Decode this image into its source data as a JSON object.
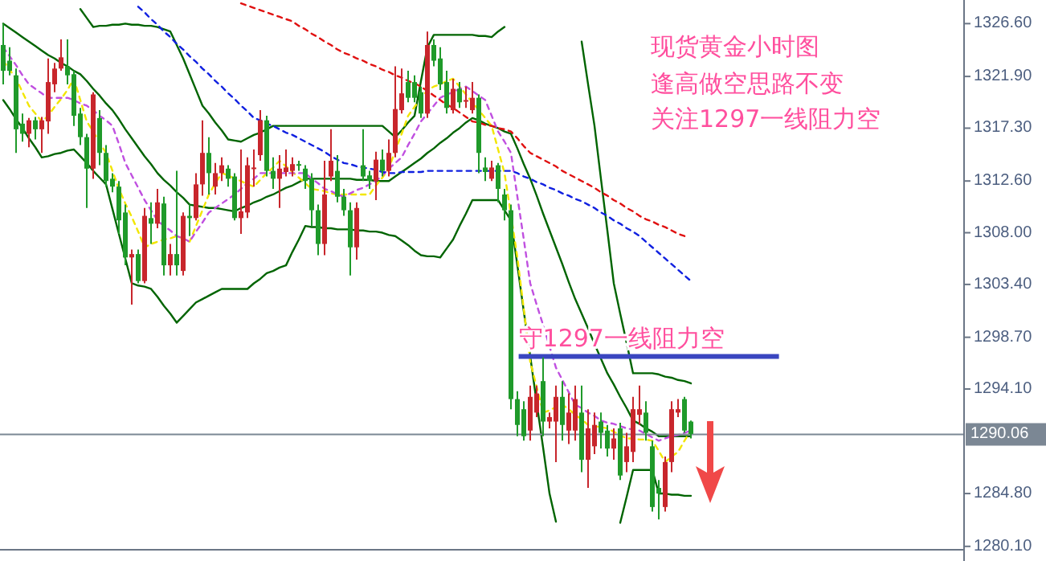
{
  "chart_data": {
    "type": "candlestick",
    "title": "现货黄金小时图",
    "annotations": [
      "逢高做空思路不变",
      "关注1297一线阻力空"
    ],
    "categories": [
      null,
      null,
      null,
      null,
      null,
      null,
      null,
      null,
      null,
      null,
      null,
      null,
      null,
      null,
      null,
      null,
      null,
      null,
      null,
      null,
      null,
      null,
      null,
      null,
      null,
      null,
      null,
      null,
      null,
      null,
      null,
      null,
      null,
      null,
      null,
      null,
      null,
      null,
      null,
      null,
      null,
      null,
      null,
      null,
      null,
      null,
      null,
      null,
      null,
      null,
      null,
      null,
      null,
      null,
      null,
      null,
      null,
      null,
      null,
      null,
      null,
      null,
      null,
      null,
      null,
      null,
      null,
      null,
      null,
      null,
      null,
      null,
      null,
      null,
      null,
      null,
      null,
      null,
      null,
      null,
      null,
      null,
      null,
      null,
      null,
      null,
      null,
      null,
      null,
      null,
      null,
      null,
      null,
      null,
      null,
      null,
      null,
      null,
      null,
      null,
      null,
      null,
      null,
      null,
      null,
      null,
      null,
      null,
      null,
      null,
      null,
      null,
      null,
      null,
      null,
      null,
      null,
      null,
      null,
      null,
      null,
      null,
      null,
      null,
      null,
      null,
      null,
      null,
      null,
      null,
      null,
      null,
      null,
      null,
      null,
      null,
      null,
      null,
      null,
      null,
      null,
      null,
      null,
      null,
      null,
      null,
      null,
      null,
      null,
      null
    ],
    "ohlc": [
      [
        1324.7,
        1326.6,
        1321.2,
        1322.4
      ],
      [
        1323.3,
        1324.5,
        1322.0,
        1322.4
      ],
      [
        1322.0,
        1322.6,
        1315.1,
        1317.2
      ],
      [
        1317.7,
        1318.6,
        1316.1,
        1316.8
      ],
      [
        1316.8,
        1318.2,
        1315.6,
        1318.0
      ],
      [
        1318.0,
        1318.3,
        1316.3,
        1317.2
      ],
      [
        1317.2,
        1318.3,
        1315.1,
        1318.0
      ],
      [
        1317.9,
        1323.5,
        1316.8,
        1321.4
      ],
      [
        1321.2,
        1323.1,
        1320.5,
        1322.6
      ],
      [
        1322.6,
        1325.2,
        1322.4,
        1323.6
      ],
      [
        1322.8,
        1325.2,
        1321.2,
        1322.0
      ],
      [
        1322.1,
        1322.4,
        1317.5,
        1318.4
      ],
      [
        1318.6,
        1319.1,
        1315.8,
        1316.5
      ],
      [
        1316.5,
        1316.8,
        1310.2,
        1313.7
      ],
      [
        1313.7,
        1320.5,
        1312.8,
        1320.3
      ],
      [
        1318.2,
        1318.9,
        1314.0,
        1315.1
      ],
      [
        1315.1,
        1315.8,
        1312.1,
        1312.6
      ],
      [
        1312.8,
        1313.3,
        1311.6,
        1312.1
      ],
      [
        1312.1,
        1312.6,
        1307.9,
        1309.1
      ],
      [
        1309.8,
        1310.5,
        1305.1,
        1305.8
      ],
      [
        1305.8,
        1306.5,
        1301.6,
        1306.1
      ],
      [
        1306.1,
        1306.5,
        1303.5,
        1303.7
      ],
      [
        1303.7,
        1310.2,
        1303.5,
        1309.5
      ],
      [
        1309.3,
        1310.7,
        1307.0,
        1308.8
      ],
      [
        1308.8,
        1311.9,
        1308.4,
        1310.7
      ],
      [
        1310.6,
        1311.2,
        1304.2,
        1305.1
      ],
      [
        1305.1,
        1307.0,
        1304.2,
        1306.1
      ],
      [
        1306.1,
        1313.5,
        1304.2,
        1305.1
      ],
      [
        1304.6,
        1309.8,
        1304.2,
        1309.5
      ],
      [
        1309.5,
        1310.5,
        1307.7,
        1309.3
      ],
      [
        1309.3,
        1313.3,
        1309.1,
        1312.3
      ],
      [
        1312.3,
        1318.0,
        1311.3,
        1315.1
      ],
      [
        1315.1,
        1316.5,
        1311.4,
        1313.3
      ],
      [
        1312.1,
        1314.2,
        1311.4,
        1313.3
      ],
      [
        1313.3,
        1314.7,
        1312.6,
        1314.0
      ],
      [
        1313.7,
        1314.0,
        1312.1,
        1312.8
      ],
      [
        1313.0,
        1313.3,
        1309.1,
        1309.3
      ],
      [
        1309.3,
        1315.4,
        1307.9,
        1309.9
      ],
      [
        1309.8,
        1314.7,
        1309.3,
        1314.0
      ],
      [
        1313.7,
        1315.4,
        1312.1,
        1313.8
      ],
      [
        1314.9,
        1318.9,
        1314.4,
        1318.0
      ],
      [
        1318.0,
        1318.4,
        1313.0,
        1313.5
      ],
      [
        1313.5,
        1314.7,
        1311.9,
        1312.8
      ],
      [
        1312.8,
        1314.9,
        1310.2,
        1313.7
      ],
      [
        1313.4,
        1315.4,
        1313.0,
        1313.8
      ],
      [
        1313.5,
        1314.7,
        1313.0,
        1314.1
      ],
      [
        1314.1,
        1314.4,
        1313.5,
        1314.0
      ],
      [
        1313.7,
        1314.0,
        1311.9,
        1312.6
      ],
      [
        1312.8,
        1313.3,
        1308.6,
        1310.0
      ],
      [
        1310.0,
        1310.5,
        1306.0,
        1307.0
      ],
      [
        1307.0,
        1314.4,
        1306.0,
        1311.4
      ],
      [
        1313.0,
        1317.2,
        1312.6,
        1314.4
      ],
      [
        1313.5,
        1314.9,
        1310.7,
        1311.2
      ],
      [
        1311.2,
        1311.9,
        1309.5,
        1310.0
      ],
      [
        1310.0,
        1310.7,
        1304.2,
        1306.7
      ],
      [
        1306.7,
        1310.7,
        1305.6,
        1310.2
      ],
      [
        1314.0,
        1317.2,
        1312.6,
        1313.0
      ],
      [
        1313.1,
        1313.5,
        1311.9,
        1312.6
      ],
      [
        1312.6,
        1315.2,
        1310.9,
        1314.5
      ],
      [
        1314.5,
        1315.4,
        1313.0,
        1313.5
      ],
      [
        1313.5,
        1316.3,
        1313.0,
        1315.1
      ],
      [
        1315.1,
        1322.8,
        1314.7,
        1319.0
      ],
      [
        1318.9,
        1322.6,
        1318.6,
        1320.4
      ],
      [
        1321.4,
        1322.4,
        1319.6,
        1320.0
      ],
      [
        1321.4,
        1322.0,
        1319.6,
        1320.0
      ],
      [
        1320.5,
        1321.0,
        1318.2,
        1318.6
      ],
      [
        1318.6,
        1325.9,
        1318.2,
        1324.7
      ],
      [
        1324.7,
        1325.2,
        1322.8,
        1323.3
      ],
      [
        1323.5,
        1324.5,
        1320.7,
        1321.2
      ],
      [
        1321.4,
        1322.4,
        1318.6,
        1319.1
      ],
      [
        1318.9,
        1321.7,
        1318.6,
        1320.8
      ],
      [
        1320.8,
        1321.4,
        1319.1,
        1319.6
      ],
      [
        1319.7,
        1321.0,
        1319.1,
        1319.8
      ],
      [
        1318.9,
        1321.4,
        1318.6,
        1320.0
      ],
      [
        1320.0,
        1320.3,
        1313.3,
        1315.1
      ],
      [
        1313.8,
        1314.7,
        1312.6,
        1313.4
      ],
      [
        1312.8,
        1314.4,
        1312.6,
        1313.8
      ],
      [
        1314.0,
        1314.2,
        1310.7,
        1311.9
      ],
      [
        1311.4,
        1311.9,
        1309.1,
        1310.0
      ],
      [
        1310.0,
        1310.5,
        1292.3,
        1293.2
      ],
      [
        1293.2,
        1293.9,
        1289.9,
        1290.9
      ],
      [
        1292.3,
        1293.0,
        1289.5,
        1289.9
      ],
      [
        1290.4,
        1294.4,
        1289.5,
        1293.4
      ],
      [
        1292.0,
        1294.4,
        1291.6,
        1293.7
      ],
      [
        1294.8,
        1296.9,
        1289.9,
        1291.2
      ],
      [
        1291.2,
        1292.0,
        1290.6,
        1291.6
      ],
      [
        1291.2,
        1294.4,
        1287.6,
        1293.4
      ],
      [
        1293.4,
        1294.8,
        1289.5,
        1290.9
      ],
      [
        1290.4,
        1293.7,
        1289.2,
        1292.0
      ],
      [
        1290.4,
        1294.4,
        1289.5,
        1293.2
      ],
      [
        1292.0,
        1294.4,
        1286.7,
        1287.8
      ],
      [
        1287.8,
        1292.3,
        1285.3,
        1290.6
      ],
      [
        1289.0,
        1292.0,
        1288.3,
        1290.9
      ],
      [
        1291.2,
        1292.0,
        1288.8,
        1290.2
      ],
      [
        1290.4,
        1290.9,
        1288.1,
        1288.8
      ],
      [
        1288.8,
        1290.6,
        1287.8,
        1289.7
      ],
      [
        1290.6,
        1291.1,
        1286.0,
        1286.4
      ],
      [
        1287.6,
        1290.2,
        1286.7,
        1289.0
      ],
      [
        1288.5,
        1293.4,
        1287.6,
        1292.3
      ],
      [
        1291.8,
        1294.4,
        1290.9,
        1292.3
      ],
      [
        1292.0,
        1293.0,
        1289.5,
        1290.2
      ],
      [
        1289.0,
        1289.5,
        1283.2,
        1283.6
      ],
      [
        1285.3,
        1286.0,
        1282.5,
        1284.8
      ],
      [
        1283.6,
        1288.1,
        1283.2,
        1287.6
      ],
      [
        1287.6,
        1293.0,
        1286.7,
        1292.3
      ],
      [
        1292.0,
        1293.2,
        1291.6,
        1292.3
      ],
      [
        1293.2,
        1293.4,
        1290.2,
        1290.4
      ],
      [
        1291.2,
        1291.3,
        1289.7,
        1290.1
      ],
      null,
      null,
      null,
      null,
      null,
      null,
      null,
      null,
      null,
      null,
      null,
      null,
      null,
      null,
      null,
      null,
      null,
      null,
      null,
      null,
      null,
      null,
      null,
      null,
      null,
      null,
      null,
      null,
      null,
      null,
      null,
      null,
      null,
      null,
      null,
      null,
      null,
      null,
      null,
      null,
      null,
      null
    ],
    "colors": [
      "#1f9a2a",
      "#1f9a2a",
      "#1f9a2a",
      "#1f9a2a",
      "#c8262c",
      "#1f9a2a",
      "#c8262c",
      "#c8262c",
      "#c8262c",
      "#c8262c",
      "#1f9a2a",
      "#1f9a2a",
      "#1f9a2a",
      "#1f9a2a",
      "#c8262c",
      "#1f9a2a",
      "#1f9a2a",
      "#1f9a2a",
      "#1f9a2a",
      "#1f9a2a",
      "#c8262c",
      "#1f9a2a",
      "#c8262c",
      "#1f9a2a",
      "#c8262c",
      "#1f9a2a",
      "#c8262c",
      "#1f9a2a",
      "#c8262c",
      "#1f9a2a",
      "#c8262c",
      "#c8262c",
      "#1f9a2a",
      "#c8262c",
      "#c8262c",
      "#1f9a2a",
      "#1f9a2a",
      "#c8262c",
      "#c8262c",
      "#c8262c",
      "#c8262c",
      "#1f9a2a",
      "#1f9a2a",
      "#c8262c",
      "#c8262c",
      "#c8262c",
      "#1f9a2a",
      "#1f9a2a",
      "#1f9a2a",
      "#1f9a2a",
      "#c8262c",
      "#c8262c",
      "#1f9a2a",
      "#1f9a2a",
      "#1f9a2a",
      "#c8262c",
      "#1f9a2a",
      "#1f9a2a",
      "#c8262c",
      "#1f9a2a",
      "#c8262c",
      "#c8262c",
      "#c8262c",
      "#1f9a2a",
      "#1f9a2a",
      "#1f9a2a",
      "#c8262c",
      "#1f9a2a",
      "#1f9a2a",
      "#1f9a2a",
      "#c8262c",
      "#1f9a2a",
      "#c8262c",
      "#c8262c",
      "#1f9a2a",
      "#1f9a2a",
      "#c8262c",
      "#1f9a2a",
      "#1f9a2a",
      "#1f9a2a",
      "#1f9a2a",
      "#1f9a2a",
      "#c8262c",
      "#c8262c",
      "#1f9a2a",
      "#c8262c",
      "#c8262c",
      "#1f9a2a",
      "#c8262c",
      "#c8262c",
      "#1f9a2a",
      "#c8262c",
      "#c8262c",
      "#1f9a2a",
      "#1f9a2a",
      "#c8262c",
      "#1f9a2a",
      "#c8262c",
      "#c8262c",
      "#c8262c",
      "#1f9a2a",
      "#1f9a2a",
      "#1f9a2a",
      "#c8262c",
      "#c8262c",
      "#c8262c",
      "#1f9a2a",
      "#1f9a2a",
      null,
      null,
      null,
      null,
      null,
      null,
      null,
      null,
      null,
      null,
      null,
      null,
      null,
      null,
      null,
      null,
      null,
      null,
      null,
      null,
      null,
      null,
      null,
      null,
      null,
      null,
      null,
      null,
      null,
      null,
      null,
      null,
      null,
      null,
      null,
      null,
      null,
      null,
      null,
      null,
      null,
      null
    ],
    "series": [
      {
        "type": "line",
        "color": "#006400",
        "line_style": "solid",
        "values": [
          null,
          null,
          null,
          null,
          null,
          null,
          null,
          null,
          null,
          null,
          null,
          null,
          1327.9,
          1327.1,
          1326.3,
          1326.4,
          1326.4,
          1326.5,
          1326.5,
          1326.6,
          1326.5,
          1326.5,
          1326.4,
          1326.4,
          1326.3,
          1326.1,
          1325.9,
          1324.7,
          1323.5,
          1322.1,
          1320.7,
          1319.3,
          1318.6,
          1317.8,
          1317.1,
          1316.3,
          1316.2,
          1316.1,
          1316.4,
          1316.7,
          1316.9,
          1317.2,
          1317.5,
          1317.5,
          1317.5,
          1317.5,
          1317.5,
          1317.5,
          1317.5,
          1317.5,
          1317.5,
          1317.5,
          1317.5,
          1317.5,
          1317.5,
          1317.5,
          1317.5,
          1317.5,
          1317.5,
          1317.5,
          1317.0,
          1316.5,
          1317.1,
          1317.8,
          1318.4,
          1321.5,
          1324.5,
          1325.6,
          1325.6,
          1325.6,
          1325.6,
          1325.6,
          1325.6,
          1325.6,
          1325.5,
          1325.5,
          1325.4,
          1325.9,
          1326.3,
          null,
          null,
          null,
          null,
          null,
          null,
          null,
          null,
          null,
          null,
          null,
          1325.0,
          1321.2,
          1317.5,
          1312.8,
          1308.2,
          1303.5,
          1300.8,
          1298.2,
          1295.5,
          1295.5,
          1295.5,
          1295.5,
          1295.4,
          1295.2,
          1295.1,
          1294.9,
          1294.8,
          1294.6,
          null,
          null,
          null,
          null,
          null,
          null,
          null,
          null,
          null,
          null,
          null,
          null,
          null,
          null,
          null,
          null,
          null,
          null,
          null,
          null,
          null,
          null,
          null,
          null,
          null,
          null,
          null,
          null,
          null,
          null,
          null,
          null,
          null,
          null,
          null,
          null,
          null,
          null,
          null,
          null,
          null,
          null
        ]
      },
      {
        "type": "line",
        "color": "#006400",
        "line_style": "solid",
        "values": [
          1326.6,
          1326.2,
          1325.8,
          1325.4,
          1325.0,
          1324.6,
          1324.2,
          1323.8,
          1323.5,
          1323.1,
          1322.8,
          1322.4,
          1322.1,
          1321.5,
          1320.8,
          1320.2,
          1319.5,
          1318.9,
          1318.1,
          1317.2,
          1316.4,
          1315.6,
          1314.8,
          1314.1,
          1313.3,
          1312.7,
          1312.2,
          1311.6,
          1311.1,
          1310.5,
          1310.4,
          1310.3,
          1310.2,
          1310.2,
          1310.1,
          1310.0,
          1309.9,
          1310.2,
          1310.4,
          1310.7,
          1310.9,
          1311.2,
          1311.4,
          1311.7,
          1312.0,
          1312.2,
          1312.5,
          1312.8,
          1312.8,
          1312.8,
          1312.8,
          1312.8,
          1312.8,
          1312.8,
          1312.8,
          1312.7,
          1312.7,
          1312.7,
          1312.6,
          1312.6,
          1312.6,
          1313.0,
          1313.4,
          1313.8,
          1314.2,
          1314.6,
          1315.1,
          1315.5,
          1316.0,
          1316.4,
          1316.9,
          1317.3,
          1317.8,
          1318.2,
          1318.0,
          1317.7,
          1317.5,
          1317.3,
          1317.0,
          1316.8,
          1315.5,
          1314.1,
          1312.8,
          1311.3,
          1309.7,
          1308.2,
          1306.7,
          1305.2,
          1303.6,
          1302.1,
          1300.8,
          1299.5,
          1298.1,
          1296.8,
          1295.5,
          1294.5,
          1293.4,
          1292.4,
          1291.3,
          1291.0,
          1290.6,
          1290.3,
          1289.9,
          1289.9,
          1289.9,
          1289.9,
          1289.9,
          1289.9,
          null,
          null,
          null,
          null,
          null,
          null,
          null,
          null,
          null,
          null,
          null,
          null,
          null,
          null,
          null,
          null,
          null,
          null,
          null,
          null,
          null,
          null,
          null,
          null,
          null,
          null,
          null,
          null,
          null,
          null,
          null,
          null,
          null,
          null,
          null,
          null,
          null,
          null,
          null,
          null,
          null,
          null
        ]
      },
      {
        "type": "line",
        "color": "#006400",
        "line_style": "solid",
        "values": [
          1319.8,
          1319.0,
          1318.1,
          1317.3,
          1316.4,
          1315.6,
          1314.7,
          1314.8,
          1315.0,
          1315.1,
          1315.3,
          1315.4,
          1314.8,
          1314.2,
          1313.5,
          1312.9,
          1312.3,
          1310.1,
          1307.9,
          1305.7,
          1303.5,
          1303.3,
          1303.2,
          1303.0,
          1302.3,
          1301.5,
          1300.8,
          1300.0,
          1300.6,
          1301.2,
          1301.8,
          1302.1,
          1302.4,
          1302.7,
          1303.0,
          1303.0,
          1303.0,
          1303.0,
          1303.0,
          1303.5,
          1303.9,
          1304.4,
          1304.6,
          1304.9,
          1305.1,
          1306.3,
          1307.4,
          1308.6,
          1308.5,
          1308.5,
          1308.4,
          1308.4,
          1308.3,
          1308.3,
          1308.3,
          1308.2,
          1308.2,
          1308.1,
          1308.1,
          1308.0,
          1307.8,
          1307.7,
          1307.3,
          1306.9,
          1306.4,
          1306.0,
          1305.9,
          1305.9,
          1305.8,
          1306.6,
          1307.4,
          1308.6,
          1309.7,
          1310.9,
          1310.9,
          1310.9,
          1310.9,
          1310.9,
          1310.0,
          1309.1,
          1305.1,
          1301.0,
          1297.0,
          1292.9,
          1288.9,
          1284.8,
          1282.3,
          null,
          null,
          null,
          null,
          null,
          null,
          null,
          null,
          null,
          1282.2,
          1284.5,
          1286.9,
          1286.9,
          1286.9,
          1286.9,
          1284.8,
          1284.8,
          1284.7,
          1284.7,
          1284.6,
          1284.6,
          null,
          null,
          null,
          null,
          null,
          null,
          null,
          null,
          null,
          null,
          null,
          null,
          null,
          null,
          null,
          null,
          null,
          null,
          null,
          null,
          null,
          null,
          null,
          null,
          null,
          null,
          null,
          null,
          null,
          null,
          null,
          null,
          null,
          null,
          null,
          null,
          null,
          null,
          null,
          null,
          null,
          null
        ]
      },
      {
        "type": "line",
        "color": "#f2e600",
        "line_style": "dashed",
        "values": [
          1323.3,
          1322.5,
          1321.7,
          1320.5,
          1319.3,
          1318.6,
          1317.9,
          1318.4,
          1319.2,
          1319.9,
          1320.7,
          1321.7,
          1319.8,
          1317.9,
          1317.0,
          1316.0,
          1315.1,
          1313.5,
          1311.9,
          1310.6,
          1309.4,
          1308.1,
          1306.7,
          1307.0,
          1307.2,
          1307.4,
          1307.5,
          1307.7,
          1307.5,
          1307.2,
          1308.6,
          1310.0,
          1311.4,
          1312.4,
          1313.3,
          1313.1,
          1312.8,
          1312.6,
          1312.3,
          1312.1,
          1312.7,
          1313.3,
          1313.8,
          1314.4,
          1313.9,
          1313.4,
          1312.9,
          1312.4,
          1311.9,
          1311.8,
          1311.7,
          1311.5,
          1311.4,
          1311.4,
          1311.4,
          1311.4,
          1311.4,
          1311.4,
          1312.2,
          1312.9,
          1313.7,
          1315.3,
          1316.8,
          1318.4,
          1319.2,
          1319.9,
          1320.7,
          1321.0,
          1321.2,
          1321.5,
          1321.7,
          1321.0,
          1320.3,
          1319.6,
          1318.9,
          1318.2,
          1317.5,
          1315.4,
          1313.3,
          1309.6,
          1305.8,
          1301.2,
          1296.5,
          1294.3,
          1292.0,
          1292.2,
          1292.5,
          1292.7,
          1292.3,
          1291.8,
          1291.4,
          1290.9,
          1290.8,
          1290.7,
          1290.6,
          1290.3,
          1290.0,
          1289.7,
          1289.7,
          1289.6,
          1289.6,
          1289.5,
          1288.6,
          1287.6,
          1288.1,
          1288.5,
          1289.5,
          1290.4,
          null,
          null,
          null,
          null,
          null,
          null,
          null,
          null,
          null,
          null,
          null,
          null,
          null,
          null,
          null,
          null,
          null,
          null,
          null,
          null,
          null,
          null,
          null,
          null,
          null,
          null,
          null,
          null,
          null,
          null,
          null,
          null,
          null,
          null,
          null,
          null,
          null,
          null,
          null,
          null,
          null,
          null
        ]
      },
      {
        "type": "line",
        "color": "#c050e0",
        "line_style": "dashed",
        "values": [
          1324.5,
          1323.7,
          1322.9,
          1322.0,
          1321.2,
          1320.8,
          1320.4,
          1320.0,
          1320.0,
          1320.0,
          1320.0,
          1319.8,
          1319.5,
          1319.3,
          1318.9,
          1318.4,
          1318.0,
          1317.5,
          1315.9,
          1314.2,
          1313.1,
          1312.0,
          1310.9,
          1310.0,
          1309.1,
          1308.6,
          1308.2,
          1307.7,
          1307.5,
          1307.2,
          1308.1,
          1308.9,
          1309.8,
          1310.2,
          1310.6,
          1311.0,
          1311.4,
          1311.9,
          1312.4,
          1312.8,
          1313.3,
          1313.3,
          1313.3,
          1313.3,
          1313.3,
          1313.3,
          1313.3,
          1313.3,
          1312.8,
          1312.4,
          1311.9,
          1311.7,
          1311.4,
          1311.2,
          1311.5,
          1311.8,
          1312.0,
          1312.3,
          1312.6,
          1313.1,
          1313.7,
          1314.2,
          1314.7,
          1315.8,
          1316.8,
          1317.9,
          1318.6,
          1319.3,
          1320.0,
          1320.3,
          1320.5,
          1320.8,
          1321.0,
          1320.6,
          1320.2,
          1319.8,
          1318.4,
          1317.0,
          1316.1,
          1315.1,
          1311.2,
          1307.4,
          1303.5,
          1301.6,
          1299.8,
          1297.9,
          1296.0,
          1294.9,
          1293.8,
          1292.7,
          1292.4,
          1292.0,
          1291.7,
          1291.3,
          1291.1,
          1291.0,
          1290.8,
          1290.6,
          1290.5,
          1290.4,
          1290.1,
          1289.8,
          1289.5,
          1289.7,
          1289.9,
          1290.0,
          1290.2,
          1290.4,
          null,
          null,
          null,
          null,
          null,
          null,
          null,
          null,
          null,
          null,
          null,
          null,
          null,
          null,
          null,
          null,
          null,
          null,
          null,
          null,
          null,
          null,
          null,
          null,
          null,
          null,
          null,
          null,
          null,
          null,
          null,
          null,
          null,
          null,
          null,
          null,
          null,
          null,
          null,
          null,
          null,
          null
        ]
      },
      {
        "type": "line",
        "color": "#1020e0",
        "line_style": "dashed",
        "values": [
          null,
          null,
          null,
          null,
          null,
          null,
          null,
          null,
          null,
          null,
          null,
          null,
          null,
          null,
          null,
          null,
          null,
          null,
          null,
          null,
          null,
          1328.1,
          1327.6,
          1327.0,
          1326.5,
          1325.9,
          1325.4,
          1324.8,
          1324.3,
          1323.7,
          1323.2,
          1322.6,
          1322.1,
          1321.5,
          1321.0,
          1320.4,
          1319.9,
          1319.3,
          1318.8,
          1318.2,
          1318.0,
          1317.7,
          1317.5,
          1317.2,
          1316.9,
          1316.7,
          1316.4,
          1316.1,
          1315.8,
          1315.5,
          1315.2,
          1314.8,
          1314.5,
          1314.2,
          1314.1,
          1313.9,
          1313.8,
          1313.7,
          1313.6,
          1313.4,
          1313.3,
          1313.3,
          1313.4,
          1313.4,
          1313.4,
          1313.4,
          1313.5,
          1313.5,
          1313.5,
          1313.5,
          1313.5,
          1313.5,
          1313.5,
          1313.5,
          1313.5,
          1313.5,
          1313.5,
          1313.5,
          1313.5,
          1313.5,
          1313.3,
          1313.0,
          1312.8,
          1312.5,
          1312.3,
          1312.0,
          1311.8,
          1311.5,
          1311.3,
          1311.0,
          1310.8,
          1310.5,
          1310.2,
          1309.8,
          1309.5,
          1309.1,
          1308.8,
          1308.4,
          1308.1,
          1307.7,
          1307.2,
          1306.7,
          1306.2,
          1305.7,
          1305.2,
          1304.7,
          1304.2,
          1303.7,
          null,
          null,
          null,
          null,
          null,
          null,
          null,
          null,
          null,
          null,
          null,
          null,
          null,
          null,
          null,
          null,
          null,
          null,
          null,
          null,
          null,
          null,
          null,
          null,
          null,
          null,
          null,
          null,
          null,
          null,
          null,
          null,
          null,
          null,
          null,
          null,
          null,
          null,
          null,
          null,
          null,
          null
        ]
      },
      {
        "type": "line",
        "color": "#e01010",
        "line_style": "dashed",
        "values": [
          null,
          null,
          null,
          null,
          null,
          null,
          null,
          null,
          null,
          null,
          null,
          null,
          null,
          null,
          null,
          null,
          null,
          null,
          null,
          null,
          null,
          null,
          null,
          null,
          null,
          null,
          null,
          null,
          null,
          null,
          null,
          null,
          null,
          null,
          null,
          null,
          null,
          1328.4,
          1328.2,
          1328.0,
          1327.8,
          1327.6,
          1327.4,
          1327.2,
          1327.0,
          1326.8,
          1326.4,
          1326.1,
          1325.7,
          1325.4,
          1325.0,
          1324.7,
          1324.3,
          1324.0,
          1323.8,
          1323.5,
          1323.3,
          1323.0,
          1322.8,
          1322.5,
          1322.3,
          1322.0,
          1321.8,
          1321.5,
          1321.3,
          1321.0,
          1320.6,
          1320.2,
          1319.8,
          1319.4,
          1319.1,
          1318.7,
          1318.3,
          1317.9,
          1317.8,
          1317.6,
          1317.5,
          1317.3,
          1317.2,
          1317.0,
          1316.4,
          1315.7,
          1315.1,
          1314.8,
          1314.5,
          1314.2,
          1313.9,
          1313.5,
          1313.2,
          1312.9,
          1312.6,
          1312.3,
          1312.0,
          1311.6,
          1311.3,
          1310.9,
          1310.6,
          1310.2,
          1309.9,
          1309.5,
          1309.2,
          1309.0,
          1308.7,
          1308.5,
          1308.2,
          1307.9,
          1307.7,
          null,
          null,
          null,
          null,
          null,
          null,
          null,
          null,
          null,
          null,
          null,
          null,
          null,
          null,
          null,
          null,
          null,
          null,
          null,
          null,
          null,
          null,
          null,
          null,
          null,
          null,
          null,
          null,
          null,
          null,
          null,
          null,
          null,
          null,
          null,
          null,
          null,
          null,
          null,
          null,
          null,
          null,
          null
        ]
      }
    ],
    "ylim": [
      1279.8,
      1328.7
    ],
    "yticks": [
      {
        "value": 1326.6,
        "label": "1326.60"
      },
      {
        "value": 1321.9,
        "label": "1321.90"
      },
      {
        "value": 1317.3,
        "label": "1317.30"
      },
      {
        "value": 1312.6,
        "label": "1312.60"
      },
      {
        "value": 1308.0,
        "label": "1308.00"
      },
      {
        "value": 1303.4,
        "label": "1303.40"
      },
      {
        "value": 1298.7,
        "label": "1298.70"
      },
      {
        "value": 1294.1,
        "label": "1294.10"
      },
      {
        "value": 1284.8,
        "label": "1284.80"
      },
      {
        "value": 1280.1,
        "label": "1280.10"
      }
    ],
    "ref_lines": [
      {
        "axis": "y",
        "value": 1297,
        "label": "守1297一线阻力空",
        "color": "#3a46c0"
      },
      {
        "axis": "y",
        "value": 1290.06,
        "label": "1290.06",
        "color": "#7b8794"
      }
    ],
    "grid": false,
    "marker": "none"
  }
}
